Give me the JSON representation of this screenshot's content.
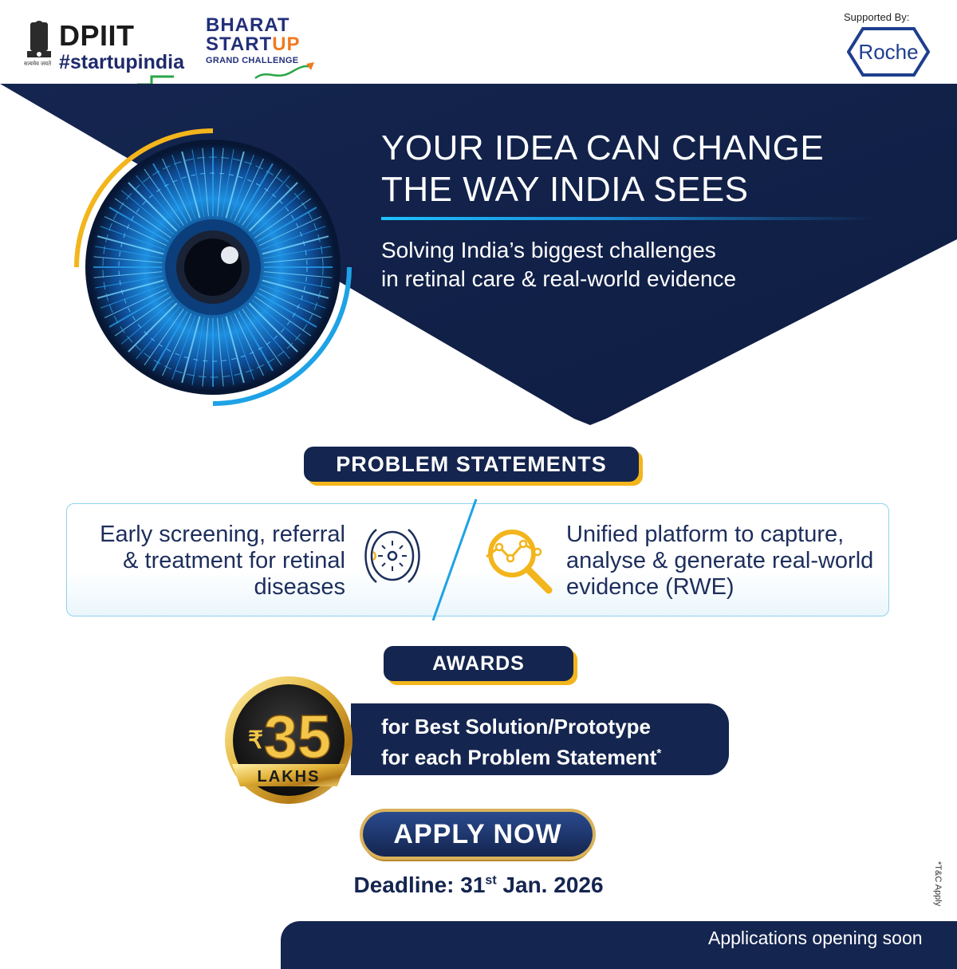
{
  "header": {
    "dpiit": "DPIIT",
    "startupindia": "#startupindia",
    "emblem_caption": "सत्यमेव जयते",
    "bsgc_line1": "BHARAT",
    "bsgc_line2a": "START",
    "bsgc_line2b": "UP",
    "bsgc_line3": "GRAND CHALLENGE",
    "supported_by": "Supported By:",
    "roche": "Roche"
  },
  "hero": {
    "headline_line1": "YOUR IDEA CAN CHANGE",
    "headline_line2": "THE WAY INDIA SEES",
    "subline_line1": "Solving India’s biggest challenges",
    "subline_line2": "in retinal care & real-world evidence"
  },
  "problems": {
    "title": "PROBLEM STATEMENTS",
    "left_line1": "Early screening, referral",
    "left_line2": "& treatment for retinal",
    "left_line3": "diseases",
    "right_line1": "Unified platform to capture,",
    "right_line2": "analyse & generate real-world",
    "right_line3": "evidence (RWE)"
  },
  "awards": {
    "title": "AWARDS",
    "currency": "₹",
    "amount": "35",
    "unit": "LAKHS",
    "line1": "for Best Solution/Prototype",
    "line2": "for each Problem Statement",
    "mark": "*"
  },
  "apply": {
    "button": "APPLY NOW",
    "deadline_prefix": "Deadline: 31",
    "deadline_sup": "st",
    "deadline_suffix": " Jan. 2026",
    "tc": "*T&C Apply"
  },
  "footer": {
    "text": "Applications opening soon"
  },
  "colors": {
    "navy": "#14254f",
    "gold": "#f3b51c",
    "cyan": "#1ec2ff"
  }
}
